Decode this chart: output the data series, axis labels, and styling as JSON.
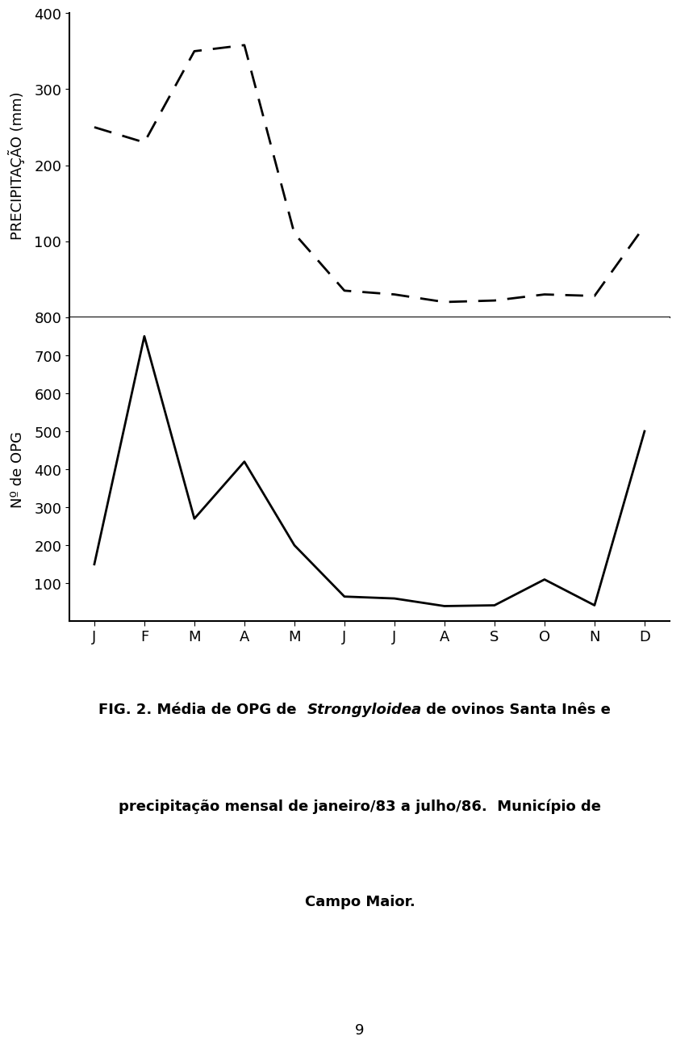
{
  "months": [
    "J",
    "F",
    "M",
    "A",
    "M",
    "J",
    "J",
    "A",
    "S",
    "O",
    "N",
    "D"
  ],
  "precip_values": [
    250,
    230,
    350,
    358,
    110,
    35,
    30,
    20,
    22,
    30,
    28,
    120
  ],
  "opg_values": [
    150,
    750,
    270,
    420,
    200,
    65,
    60,
    40,
    42,
    110,
    42,
    500
  ],
  "precip_ylim": [
    0,
    400
  ],
  "precip_yticks": [
    100,
    200,
    300,
    400
  ],
  "opg_ylim": [
    0,
    800
  ],
  "opg_yticks": [
    100,
    200,
    300,
    400,
    500,
    600,
    700,
    800
  ],
  "precip_ylabel": "PRECIPITAÇÃO (mm)",
  "opg_ylabel": "Nº de OPG",
  "caption_prefix": "FIG. 2. Média de OPG de ",
  "caption_italic": "Strongyloidea",
  "caption_suffix": " de ovinos Santa Inês e",
  "caption_line2": "precipitação mensal de janeiro/83 a julho/86.  Município de",
  "caption_line3": "Campo Maior.",
  "page_number": "9",
  "bg_color": "#ffffff",
  "line_color": "#000000"
}
